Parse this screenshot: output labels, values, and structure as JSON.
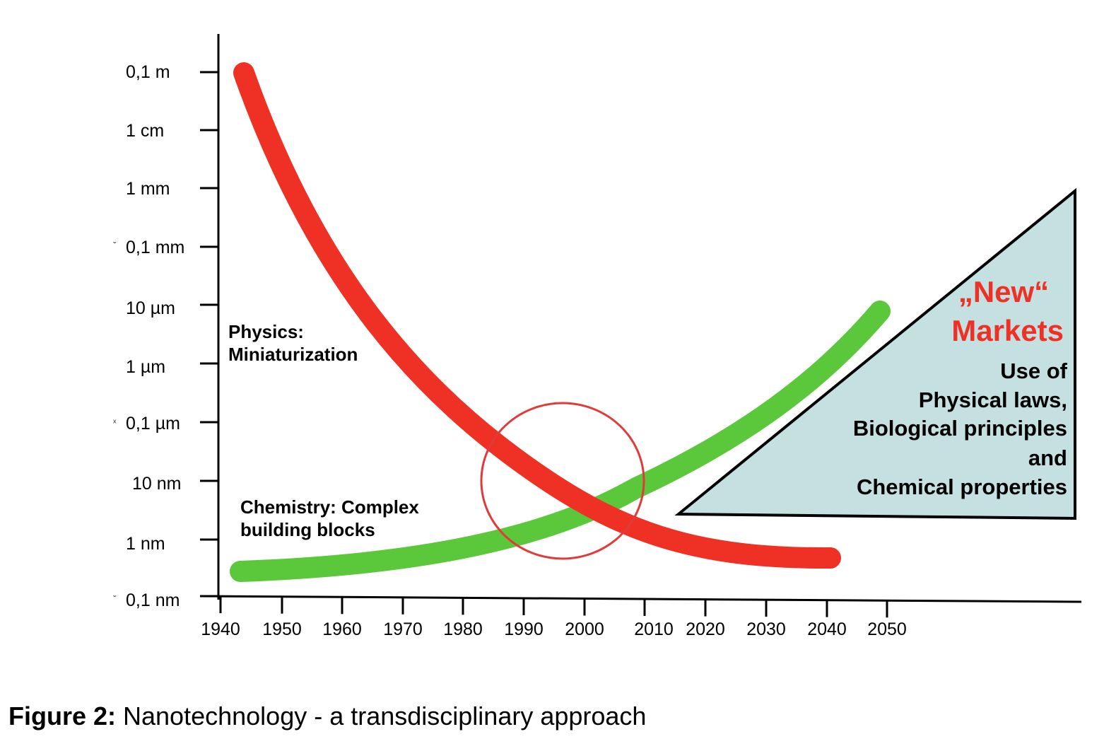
{
  "colors": {
    "physics_curve": "#ee3124",
    "chemistry_curve": "#5bc83c",
    "circle": "#e03a3a",
    "triangle_fill": "#c4e0e0",
    "new_markets_title": "#ee3124",
    "axis": "#000000"
  },
  "y_axis": {
    "scale": "log",
    "tick_labels": [
      "0,1 m",
      "1 cm",
      "1 mm",
      "0,1 mm",
      "10 µm",
      "1 µm",
      "0,1 µm",
      "10 nm",
      "1 nm",
      "0,1 nm"
    ]
  },
  "x_axis": {
    "tick_labels": [
      "1940",
      "1950",
      "1960",
      "1970",
      "1980",
      "1990",
      "2000",
      "2010",
      "2020",
      "2030",
      "2040",
      "2050"
    ]
  },
  "annotations": {
    "physics_line1": "Physics:",
    "physics_line2": "Miniaturization",
    "chemistry_line1": "Chemistry: Complex",
    "chemistry_line2": "building blocks"
  },
  "new_markets": {
    "title_line1": "„New“",
    "title_line2": "Markets",
    "lines": [
      "Use of",
      "Physical laws,",
      "Biological principles",
      "and",
      "Chemical properties"
    ]
  },
  "caption": {
    "label": "Figure 2:",
    "text": " Nanotechnology - a transdisciplinary approach"
  }
}
